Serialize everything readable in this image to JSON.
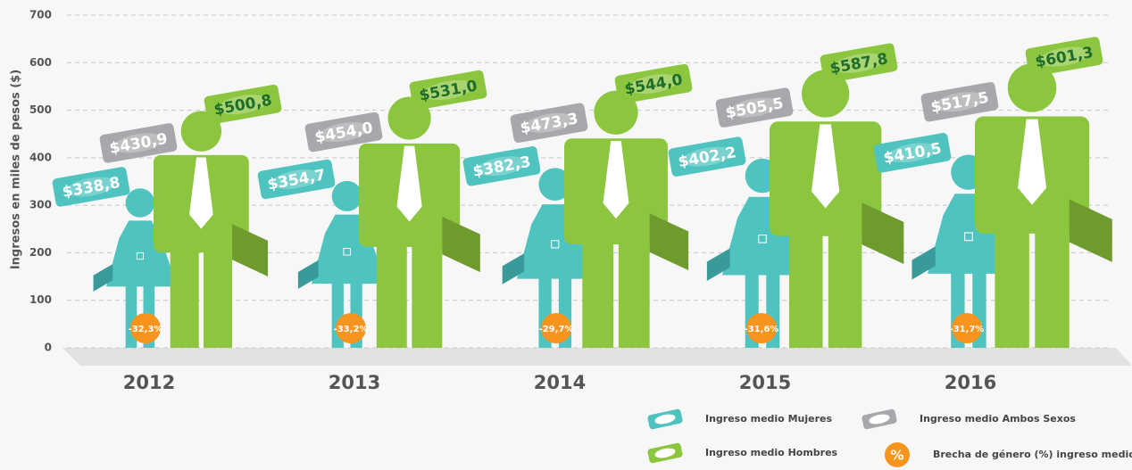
{
  "chart_data": {
    "type": "pictogram",
    "y_label": "Ingresos en miles de pesos ($)",
    "categories": [
      "2012",
      "2013",
      "2014",
      "2015",
      "2016"
    ],
    "ylim": [
      0,
      700
    ],
    "yticks": [
      0,
      100,
      200,
      300,
      400,
      500,
      600,
      700
    ],
    "grid": true,
    "series": [
      {
        "name": "Ingreso medio Mujeres",
        "color": "#4ec3bf",
        "values": [
          338.8,
          354.7,
          382.3,
          402.2,
          410.5
        ],
        "value_labels": [
          "$338,8",
          "$354,7",
          "$382,3",
          "$402,2",
          "$410,5"
        ]
      },
      {
        "name": "Ingreso medio Hombres",
        "color": "#8cc63f",
        "values": [
          500.8,
          531.0,
          544.0,
          587.8,
          601.3
        ],
        "value_labels": [
          "$500,8",
          "$531,0",
          "$544,0",
          "$587,8",
          "$601,3"
        ]
      },
      {
        "name": "Ingreso medio Ambos Sexos",
        "color": "#a6a8ab",
        "values": [
          430.9,
          454.0,
          473.3,
          505.5,
          517.5
        ],
        "value_labels": [
          "$430,9",
          "$454,0",
          "$473,3",
          "$505,5",
          "$517,5"
        ]
      }
    ],
    "gap": {
      "name": "Brecha de género (%) ingreso medio",
      "symbol": "%",
      "color": "#f7941d",
      "values": [
        -32.3,
        -33.2,
        -29.7,
        -31.6,
        -31.7
      ],
      "value_labels": [
        "-32,3%",
        "-33,2%",
        "-29,7%",
        "-31,6%",
        "-31,7%"
      ]
    }
  }
}
